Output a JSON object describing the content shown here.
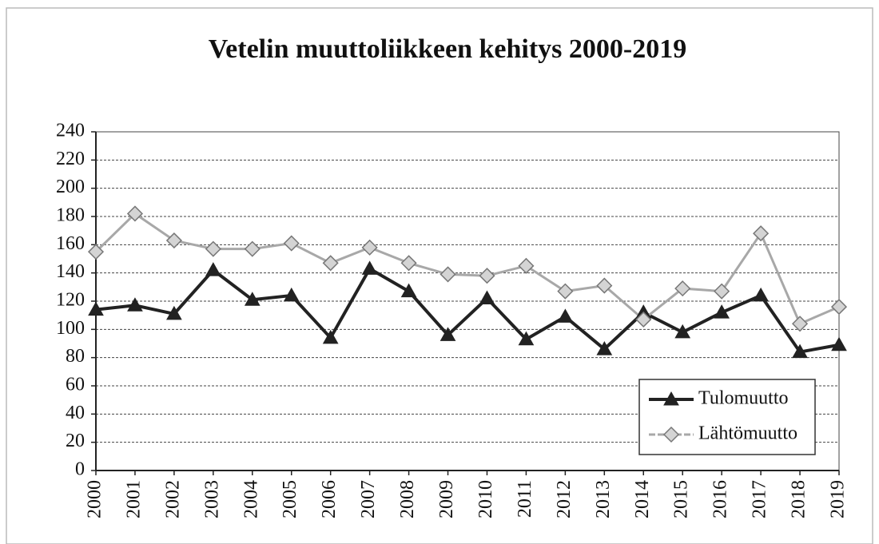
{
  "chart_data": {
    "type": "line",
    "title": "Vetelin muuttoliikkeen kehitys 2000-2019",
    "categories": [
      "2000",
      "2001",
      "2002",
      "2003",
      "2004",
      "2005",
      "2006",
      "2007",
      "2008",
      "2009",
      "2010",
      "2011",
      "2012",
      "2013",
      "2014",
      "2015",
      "2016",
      "2017",
      "2018",
      "2019"
    ],
    "series": [
      {
        "name": "Tulomuutto",
        "color": "#222222",
        "marker": "triangle",
        "values": [
          114,
          117,
          111,
          142,
          121,
          124,
          94,
          143,
          127,
          96,
          122,
          93,
          109,
          86,
          112,
          98,
          112,
          124,
          84,
          89
        ]
      },
      {
        "name": "Lähtömuutto",
        "color": "#a8a8a8",
        "marker": "diamond",
        "values": [
          155,
          182,
          163,
          157,
          157,
          161,
          147,
          158,
          147,
          139,
          138,
          145,
          127,
          131,
          107,
          129,
          127,
          168,
          104,
          116
        ]
      }
    ],
    "ylim": [
      0,
      240
    ],
    "yticks": [
      0,
      20,
      40,
      60,
      80,
      100,
      120,
      140,
      160,
      180,
      200,
      220,
      240
    ],
    "grid": true,
    "legend": "lower right"
  }
}
